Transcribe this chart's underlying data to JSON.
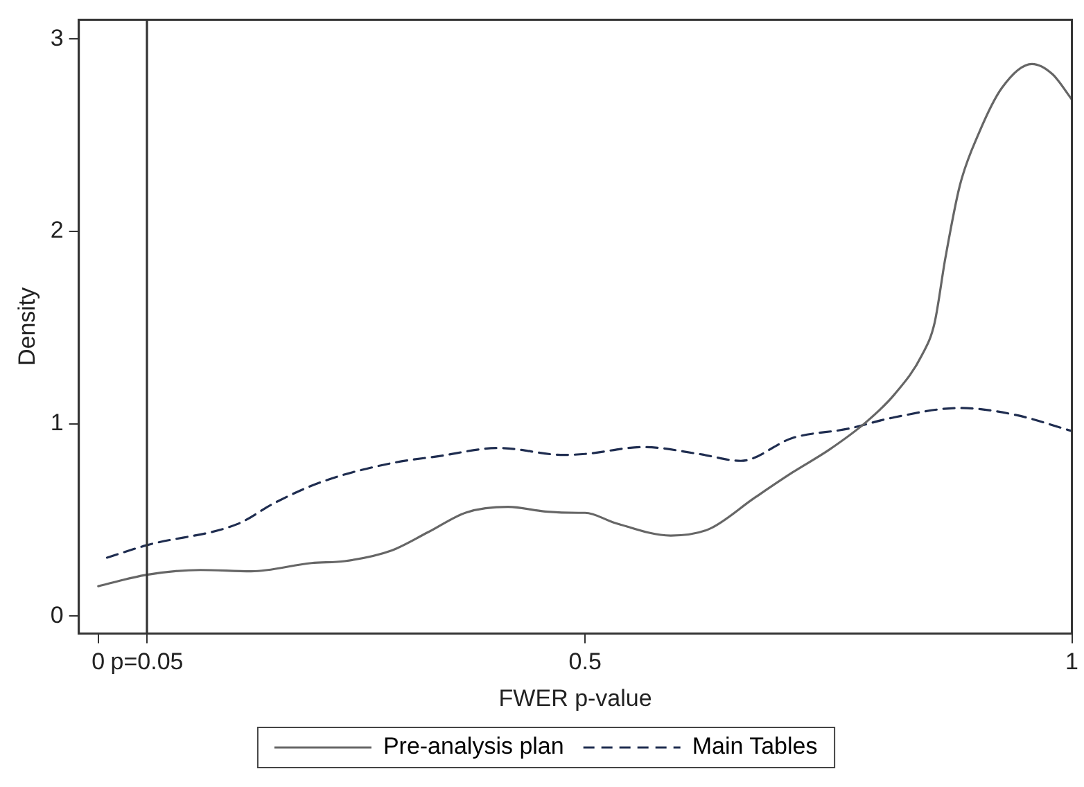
{
  "chart_data": {
    "type": "line",
    "xlabel": "FWER p-value",
    "ylabel": "Density",
    "xlim": [
      -0.02,
      1
    ],
    "xticks": [
      0,
      {
        "value": 0.05,
        "label": "p=0.05"
      },
      0.5,
      1
    ],
    "ylim": [
      -0.09,
      3.1
    ],
    "yticks": [
      0,
      1,
      2,
      3
    ],
    "grid": false,
    "legend": "bottom",
    "marker": "none",
    "ref_lines": [
      {
        "axis": "x",
        "value": 0.05,
        "color": "#333333"
      }
    ],
    "series": [
      {
        "name": "Pre-analysis plan",
        "color": "#666666",
        "line_style": "solid",
        "x": [
          0,
          0.05,
          0.105,
          0.157,
          0.219,
          0.253,
          0.301,
          0.339,
          0.378,
          0.421,
          0.459,
          0.493,
          0.5,
          0.531,
          0.588,
          0.627,
          0.674,
          0.713,
          0.751,
          0.789,
          0.818,
          0.846,
          0.859,
          0.87,
          0.885,
          0.904,
          0.928,
          0.959,
          0.98,
          1
        ],
        "values": [
          0.156,
          0.215,
          0.24,
          0.233,
          0.276,
          0.286,
          0.341,
          0.437,
          0.539,
          0.568,
          0.544,
          0.537,
          0.537,
          0.484,
          0.419,
          0.452,
          0.615,
          0.747,
          0.866,
          1.01,
          1.154,
          1.357,
          1.525,
          1.86,
          2.24,
          2.505,
          2.745,
          2.87,
          2.817,
          2.685
        ]
      },
      {
        "name": "Main Tables",
        "color": "#1f2d50",
        "line_style": "dashed",
        "x": [
          0.009,
          0.05,
          0.143,
          0.182,
          0.23,
          0.301,
          0.349,
          0.411,
          0.478,
          0.5,
          0.56,
          0.617,
          0.66,
          0.713,
          0.77,
          0.818,
          0.885,
          0.942,
          1
        ],
        "values": [
          0.304,
          0.369,
          0.479,
          0.591,
          0.699,
          0.795,
          0.831,
          0.874,
          0.838,
          0.843,
          0.879,
          0.843,
          0.807,
          0.926,
          0.974,
          1.034,
          1.082,
          1.046,
          0.962
        ]
      }
    ]
  }
}
